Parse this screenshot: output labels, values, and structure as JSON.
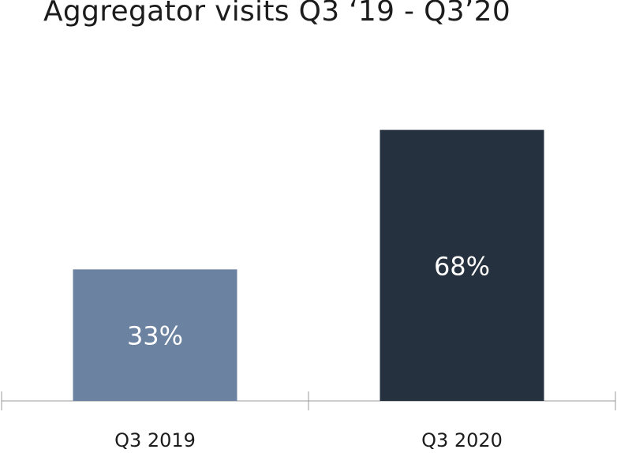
{
  "chart_data": {
    "type": "bar",
    "title": "Aggregator visits Q3 ‘19 - Q3’20",
    "categories": [
      "Q3 2019",
      "Q3 2020"
    ],
    "values": [
      33,
      68
    ],
    "value_labels": [
      "33%",
      "68%"
    ],
    "unit": "%",
    "colors": [
      "#6b82a1",
      "#26313f"
    ],
    "label_color": "#ffffff",
    "axis_color": "#9a9a9a",
    "title_color": "#1c1c1c",
    "ylim": [
      0,
      100
    ],
    "grid": false,
    "legend": "none",
    "xlabel": "",
    "ylabel": ""
  }
}
